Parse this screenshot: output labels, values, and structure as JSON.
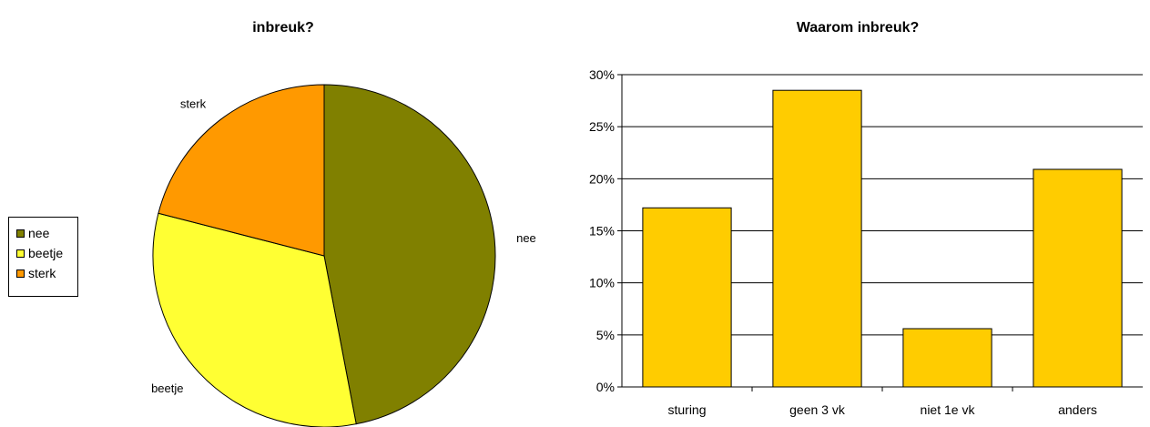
{
  "chart_data": [
    {
      "type": "pie",
      "title": "inbreuk?",
      "slices": [
        {
          "label": "nee",
          "value": 47,
          "color": "#808000"
        },
        {
          "label": "beetje",
          "value": 32,
          "color": "#FFFF33"
        },
        {
          "label": "sterk",
          "value": 21,
          "color": "#FF9900"
        }
      ],
      "legend": {
        "placement": "left",
        "items": [
          "nee",
          "beetje",
          "sterk"
        ]
      }
    },
    {
      "type": "bar",
      "title": "Waarom inbreuk?",
      "categories": [
        "sturing",
        "geen 3 vk",
        "niet 1e vk",
        "anders"
      ],
      "values": [
        17.2,
        28.5,
        5.6,
        20.9
      ],
      "ylim": [
        0,
        30
      ],
      "yticks": [
        "0%",
        "5%",
        "10%",
        "15%",
        "20%",
        "25%",
        "30%"
      ],
      "grid": true,
      "bar_color": "#FFCC00"
    }
  ]
}
